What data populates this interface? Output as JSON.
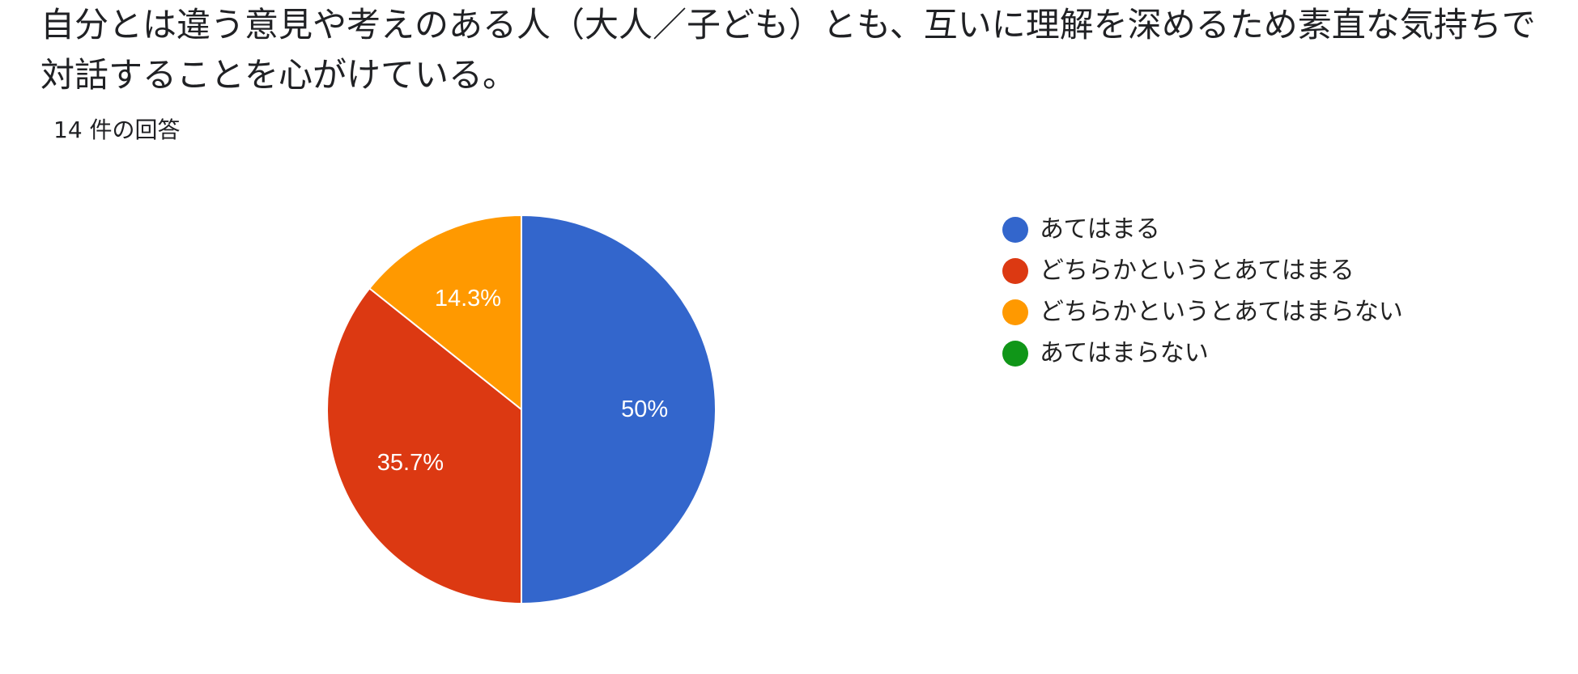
{
  "question": {
    "title": "自分とは違う意見や考えのある人（大人／子ども）とも、互いに理解を深めるため素直な気持ちで対話することを心がけている。"
  },
  "responses": {
    "count_label": "14 件の回答"
  },
  "chart_data": {
    "type": "pie",
    "title": "",
    "total_responses": 14,
    "categories": [
      "あてはまる",
      "どちらかというとあてはまる",
      "どちらかというとあてはまらない",
      "あてはまらない"
    ],
    "values": [
      7,
      5,
      2,
      0
    ],
    "percent_labels": [
      "50%",
      "35.7%",
      "14.3%",
      ""
    ],
    "colors": [
      "#3366cc",
      "#dc3912",
      "#ff9900",
      "#109618"
    ],
    "label_color": "#ffffff",
    "slice_border_color": "#ffffff",
    "legend_position": "right",
    "start_angle_deg": 90,
    "direction": "clockwise"
  }
}
